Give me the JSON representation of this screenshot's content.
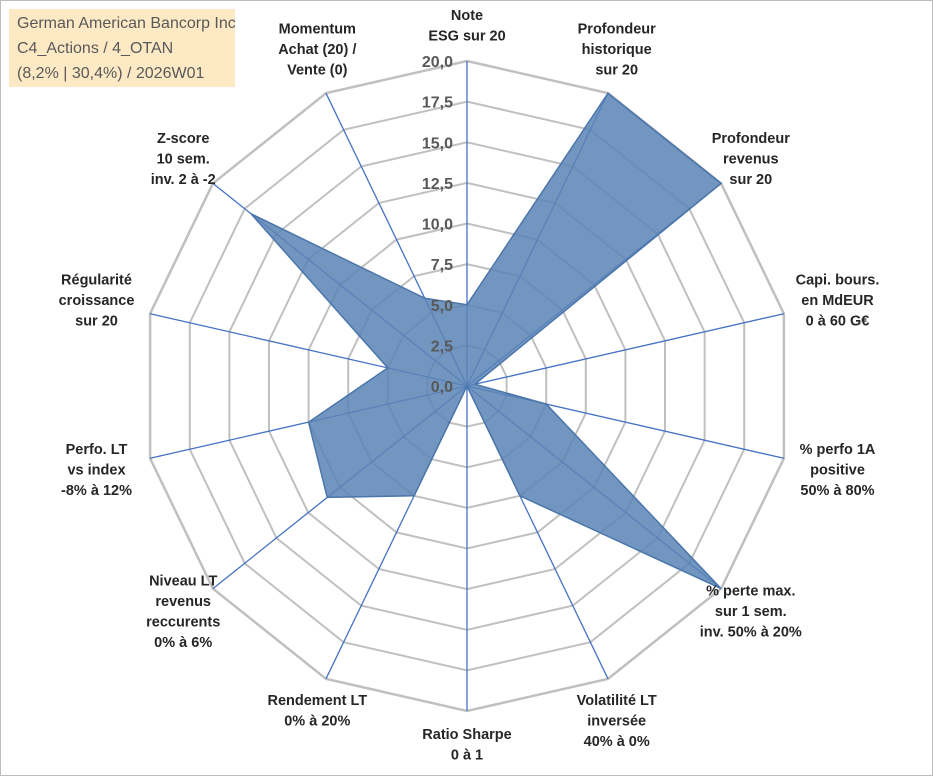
{
  "info": {
    "line1": "German American Bancorp Inc",
    "line2": "C4_Actions / 4_OTAN",
    "line3": "(8,2% | 30,4%) / 2026W01"
  },
  "colors": {
    "fill": "#5b84b6",
    "stroke": "#4a76aa",
    "spoke": "#4472c4",
    "grid": "#c0c0c0",
    "info_bg": "#fde9c4"
  },
  "chart_data": {
    "type": "radar",
    "r_min": 0,
    "r_max": 20,
    "tick_step": 2.5,
    "tick_labels": [
      "0,0",
      "2,5",
      "5,0",
      "7,5",
      "10,0",
      "12,5",
      "15,0",
      "17,5",
      "20,0"
    ],
    "axes": [
      {
        "label": [
          "Note",
          "ESG sur 20"
        ],
        "value": 5
      },
      {
        "label": [
          "Profondeur",
          "historique",
          "sur 20"
        ],
        "value": 20
      },
      {
        "label": [
          "Profondeur",
          "revenus",
          "sur 20"
        ],
        "value": 20
      },
      {
        "label": [
          "Capi. bours.",
          "en MdEUR",
          "0 à 60 G€"
        ],
        "value": 0.5
      },
      {
        "label": [
          "% perfo 1A",
          "positive",
          "50% à 80%"
        ],
        "value": 5
      },
      {
        "label": [
          "% perte max.",
          "sur 1 sem.",
          "inv. 50% à 20%"
        ],
        "value": 20
      },
      {
        "label": [
          "Volatilité LT",
          "inversée",
          "40% à 0%"
        ],
        "value": 7.5
      },
      {
        "label": [
          "Ratio Sharpe",
          "0 à 1"
        ],
        "value": 0
      },
      {
        "label": [
          "Rendement LT",
          "0% à 20%"
        ],
        "value": 7.5
      },
      {
        "label": [
          "Niveau LT",
          "revenus",
          "reccurents",
          "0% à 6%"
        ],
        "value": 11
      },
      {
        "label": [
          "Perfo. LT",
          "vs index",
          "-8% à 12%"
        ],
        "value": 10
      },
      {
        "label": [
          "Régularité",
          "croissance",
          "sur 20"
        ],
        "value": 5
      },
      {
        "label": [
          "Z-score",
          "10 sem.",
          "inv. 2 à -2"
        ],
        "value": 17
      },
      {
        "label": [
          "Momentum",
          "Achat (20) /",
          "Vente (0)"
        ],
        "value": 6
      }
    ]
  }
}
